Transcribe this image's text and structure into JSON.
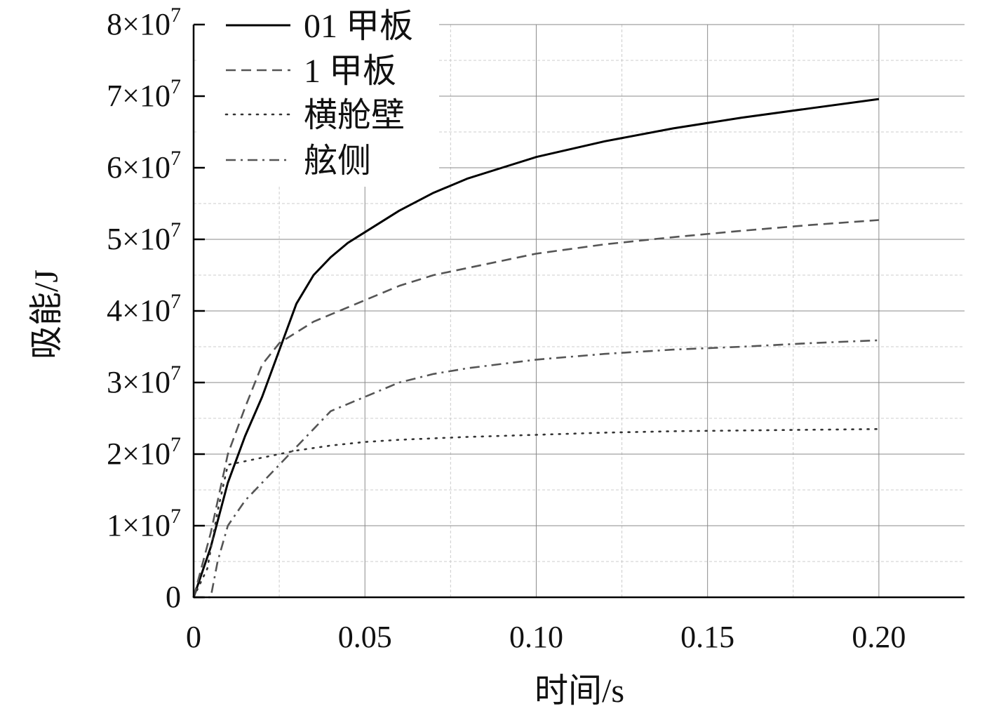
{
  "chart_data": {
    "type": "line",
    "xlabel": "时间/s",
    "ylabel": "吸能/J",
    "xlim": [
      0,
      0.225
    ],
    "ylim": [
      0,
      80000000
    ],
    "grid": true,
    "legend_position": "top-left",
    "x_ticks": [
      {
        "value": 0,
        "label": "0"
      },
      {
        "value": 0.05,
        "label": "0.05"
      },
      {
        "value": 0.1,
        "label": "0.10"
      },
      {
        "value": 0.15,
        "label": "0.15"
      },
      {
        "value": 0.2,
        "label": "0.20"
      }
    ],
    "y_ticks": [
      {
        "value": 0,
        "mant": "0",
        "exp": ""
      },
      {
        "value": 10000000,
        "mant": "1×10",
        "exp": "7"
      },
      {
        "value": 20000000,
        "mant": "2×10",
        "exp": "7"
      },
      {
        "value": 30000000,
        "mant": "3×10",
        "exp": "7"
      },
      {
        "value": 40000000,
        "mant": "4×10",
        "exp": "7"
      },
      {
        "value": 50000000,
        "mant": "5×10",
        "exp": "7"
      },
      {
        "value": 60000000,
        "mant": "6×10",
        "exp": "7"
      },
      {
        "value": 70000000,
        "mant": "7×10",
        "exp": "7"
      },
      {
        "value": 80000000,
        "mant": "8×10",
        "exp": "7"
      }
    ],
    "series": [
      {
        "name": "01 甲板",
        "color": "#000000",
        "dash": "solid",
        "x": [
          0,
          0.005,
          0.01,
          0.015,
          0.02,
          0.025,
          0.03,
          0.035,
          0.04,
          0.045,
          0.05,
          0.06,
          0.07,
          0.08,
          0.09,
          0.1,
          0.12,
          0.14,
          0.16,
          0.18,
          0.2
        ],
        "y": [
          0,
          7000000,
          16000000,
          22500000,
          28000000,
          34500000,
          41000000,
          45000000,
          47500000,
          49500000,
          51000000,
          54000000,
          56500000,
          58500000,
          60000000,
          61500000,
          63700000,
          65500000,
          67000000,
          68300000,
          69600000
        ]
      },
      {
        "name": "1 甲板",
        "color": "#555555",
        "dash": "dashed",
        "x": [
          0,
          0.005,
          0.01,
          0.015,
          0.02,
          0.025,
          0.03,
          0.035,
          0.04,
          0.05,
          0.06,
          0.07,
          0.08,
          0.09,
          0.1,
          0.12,
          0.14,
          0.16,
          0.18,
          0.2
        ],
        "y": [
          0,
          9000000,
          20000000,
          26500000,
          32500000,
          35500000,
          37000000,
          38500000,
          39500000,
          41500000,
          43500000,
          45000000,
          46000000,
          47000000,
          48000000,
          49300000,
          50300000,
          51200000,
          52000000,
          52700000
        ]
      },
      {
        "name": "横舱壁",
        "color": "#333333",
        "dash": "dotted",
        "x": [
          0,
          0.004,
          0.007,
          0.01,
          0.02,
          0.03,
          0.04,
          0.05,
          0.06,
          0.08,
          0.1,
          0.12,
          0.14,
          0.16,
          0.18,
          0.2
        ],
        "y": [
          0,
          4000000,
          12000000,
          18500000,
          19500000,
          20500000,
          21200000,
          21700000,
          22000000,
          22400000,
          22700000,
          23000000,
          23200000,
          23300000,
          23400000,
          23500000
        ]
      },
      {
        "name": "舷侧",
        "color": "#555555",
        "dash": "dashdot",
        "x": [
          0,
          0.005,
          0.007,
          0.01,
          0.015,
          0.02,
          0.025,
          0.03,
          0.035,
          0.04,
          0.05,
          0.06,
          0.07,
          0.08,
          0.09,
          0.1,
          0.12,
          0.14,
          0.16,
          0.18,
          0.2
        ],
        "y": [
          0,
          0,
          5000000,
          10000000,
          13500000,
          16000000,
          18500000,
          21000000,
          23500000,
          26000000,
          28000000,
          30000000,
          31200000,
          32000000,
          32600000,
          33200000,
          34000000,
          34600000,
          35000000,
          35500000,
          35900000
        ]
      }
    ]
  }
}
